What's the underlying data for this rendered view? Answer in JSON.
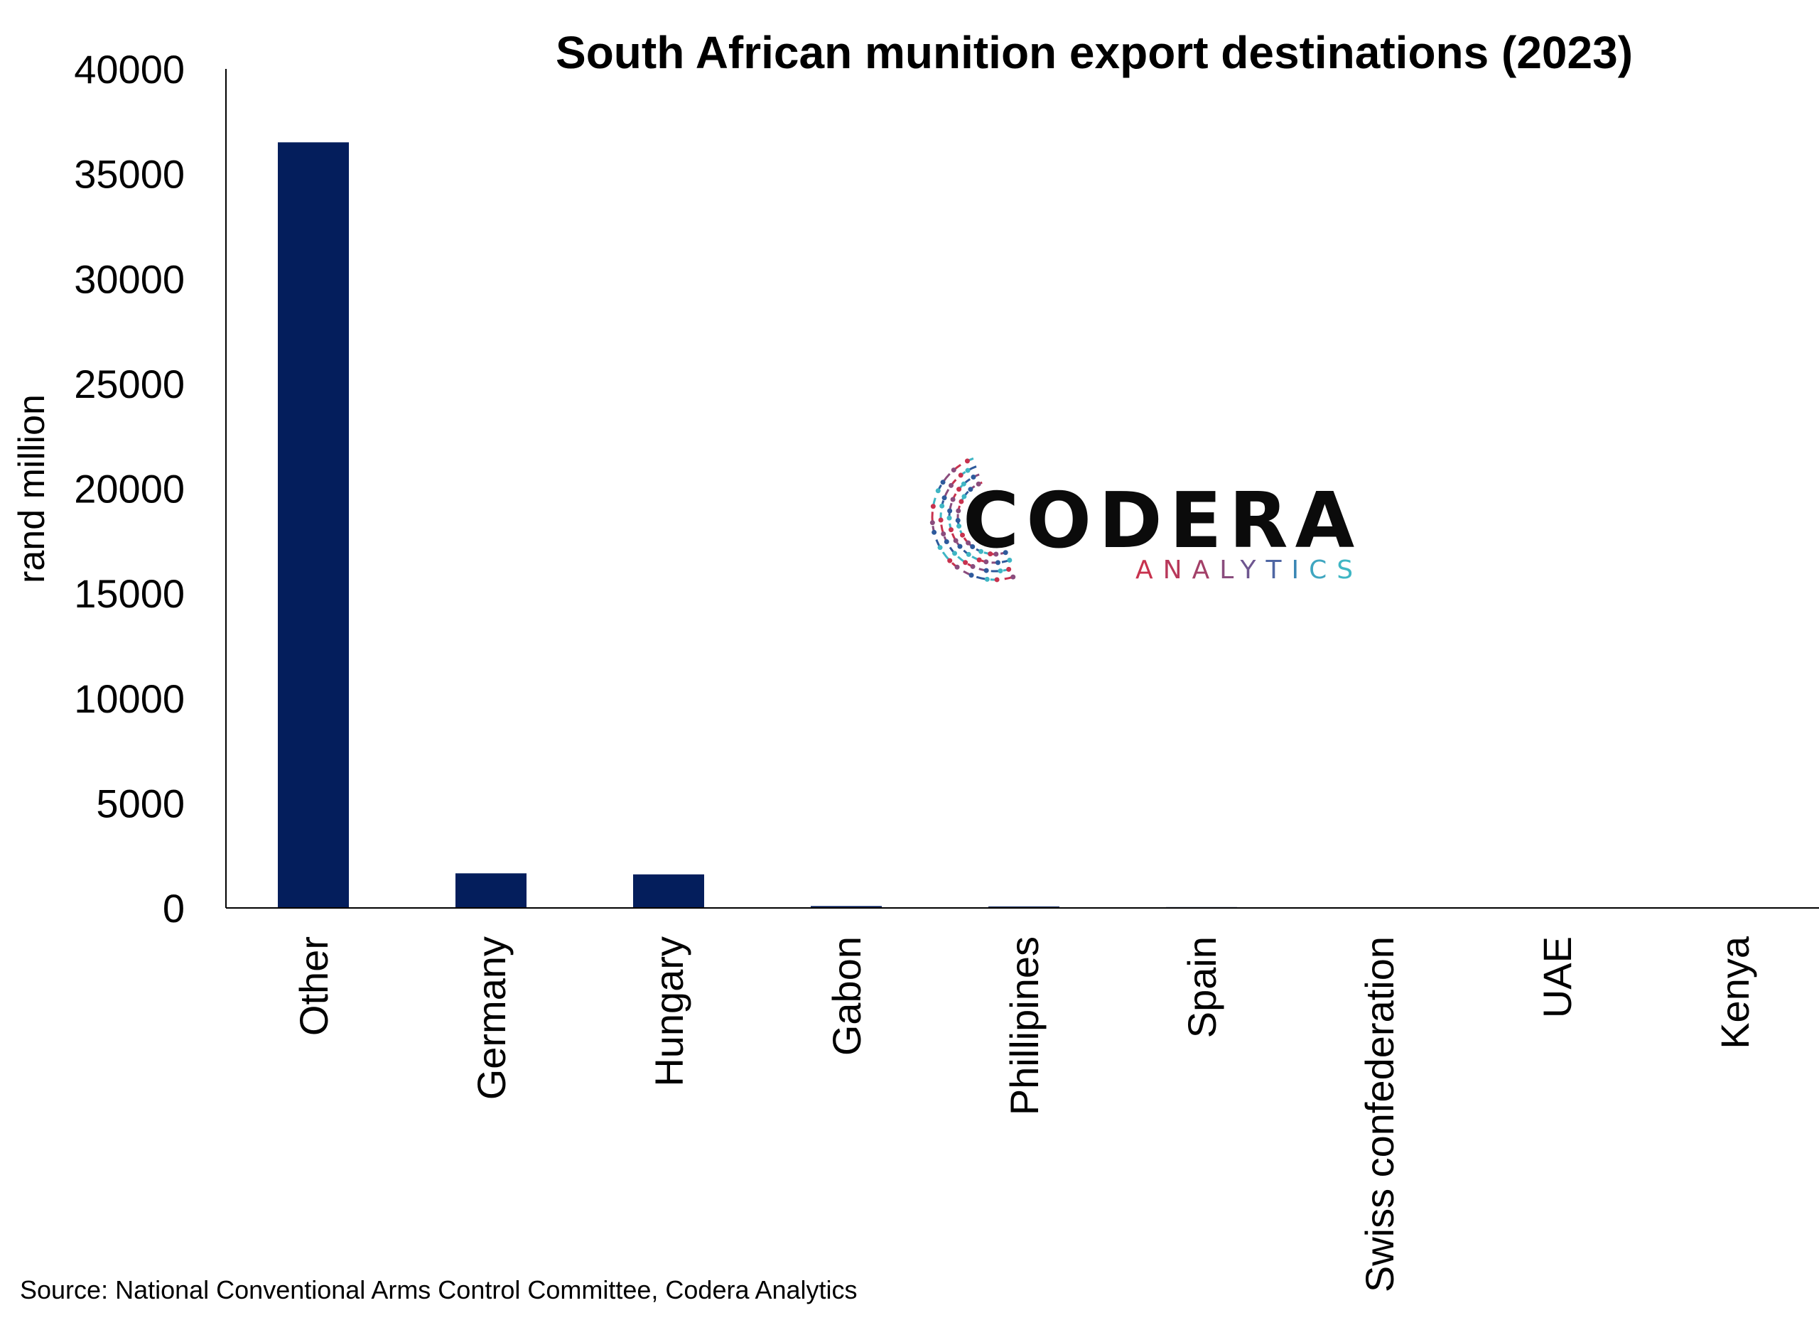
{
  "chart_data": {
    "type": "bar",
    "title": "South African munition export destinations (2023)",
    "ylabel": "rand million",
    "xlabel": "",
    "ylim": [
      0,
      40000
    ],
    "yticks": [
      0,
      5000,
      10000,
      15000,
      20000,
      25000,
      30000,
      35000,
      40000
    ],
    "categories": [
      "Other",
      "Germany",
      "Hungary",
      "Gabon",
      "Phillipines",
      "Spain",
      "Swiss confederation",
      "UAE",
      "Kenya"
    ],
    "values": [
      36500,
      1650,
      1600,
      90,
      70,
      40,
      15,
      10,
      5
    ],
    "bar_color": "#041E5C",
    "grid": false,
    "legend": "none"
  },
  "source": "Source: National Conventional Arms Control Committee, Codera Analytics",
  "logo": {
    "name": "CODERA",
    "tagline": "ANALYTICS",
    "colors": [
      "#C8324E",
      "#8A4C7D",
      "#2E5A9C",
      "#3FB6C4"
    ]
  }
}
